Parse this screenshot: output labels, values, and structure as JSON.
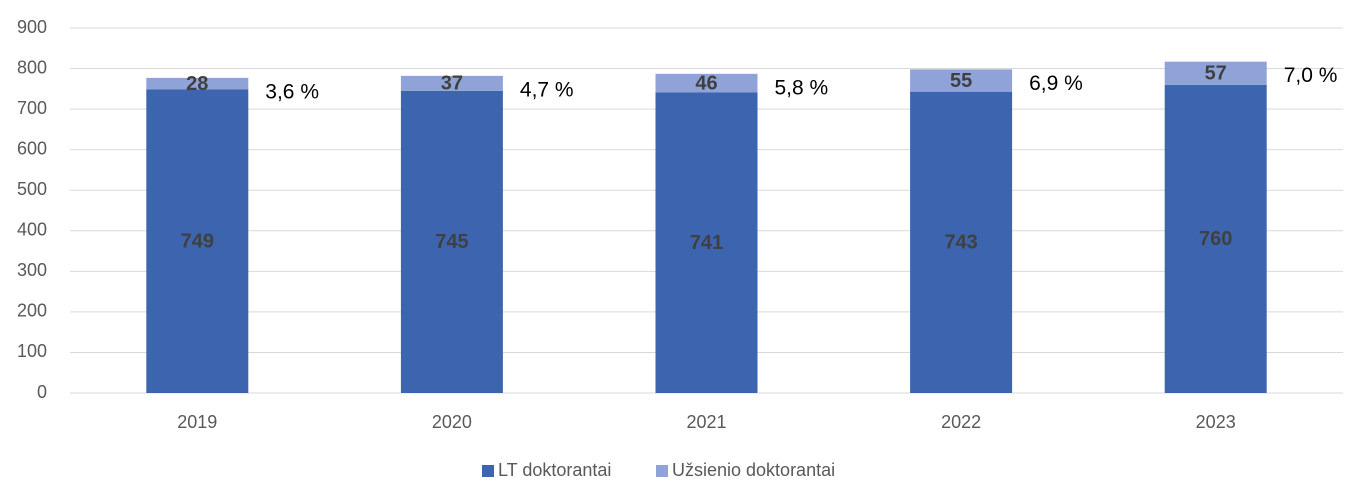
{
  "chart_data": {
    "type": "stacked_bar",
    "categories": [
      "2019",
      "2020",
      "2021",
      "2022",
      "2023"
    ],
    "series": [
      {
        "name": "LT doktorantai",
        "color": "#3d64ae",
        "values": [
          749,
          745,
          741,
          743,
          760
        ]
      },
      {
        "name": "Užsienio doktorantai",
        "color": "#8fa3d8",
        "values": [
          28,
          37,
          46,
          55,
          57
        ]
      }
    ],
    "annotations": [
      "3,6 %",
      "4,7 %",
      "5,8 %",
      "6,9 %",
      "7,0 %"
    ],
    "ylim": [
      0,
      900
    ],
    "yticks": [
      0,
      100,
      200,
      300,
      400,
      500,
      600,
      700,
      800,
      900
    ],
    "grid": true,
    "legend": "bottom"
  }
}
